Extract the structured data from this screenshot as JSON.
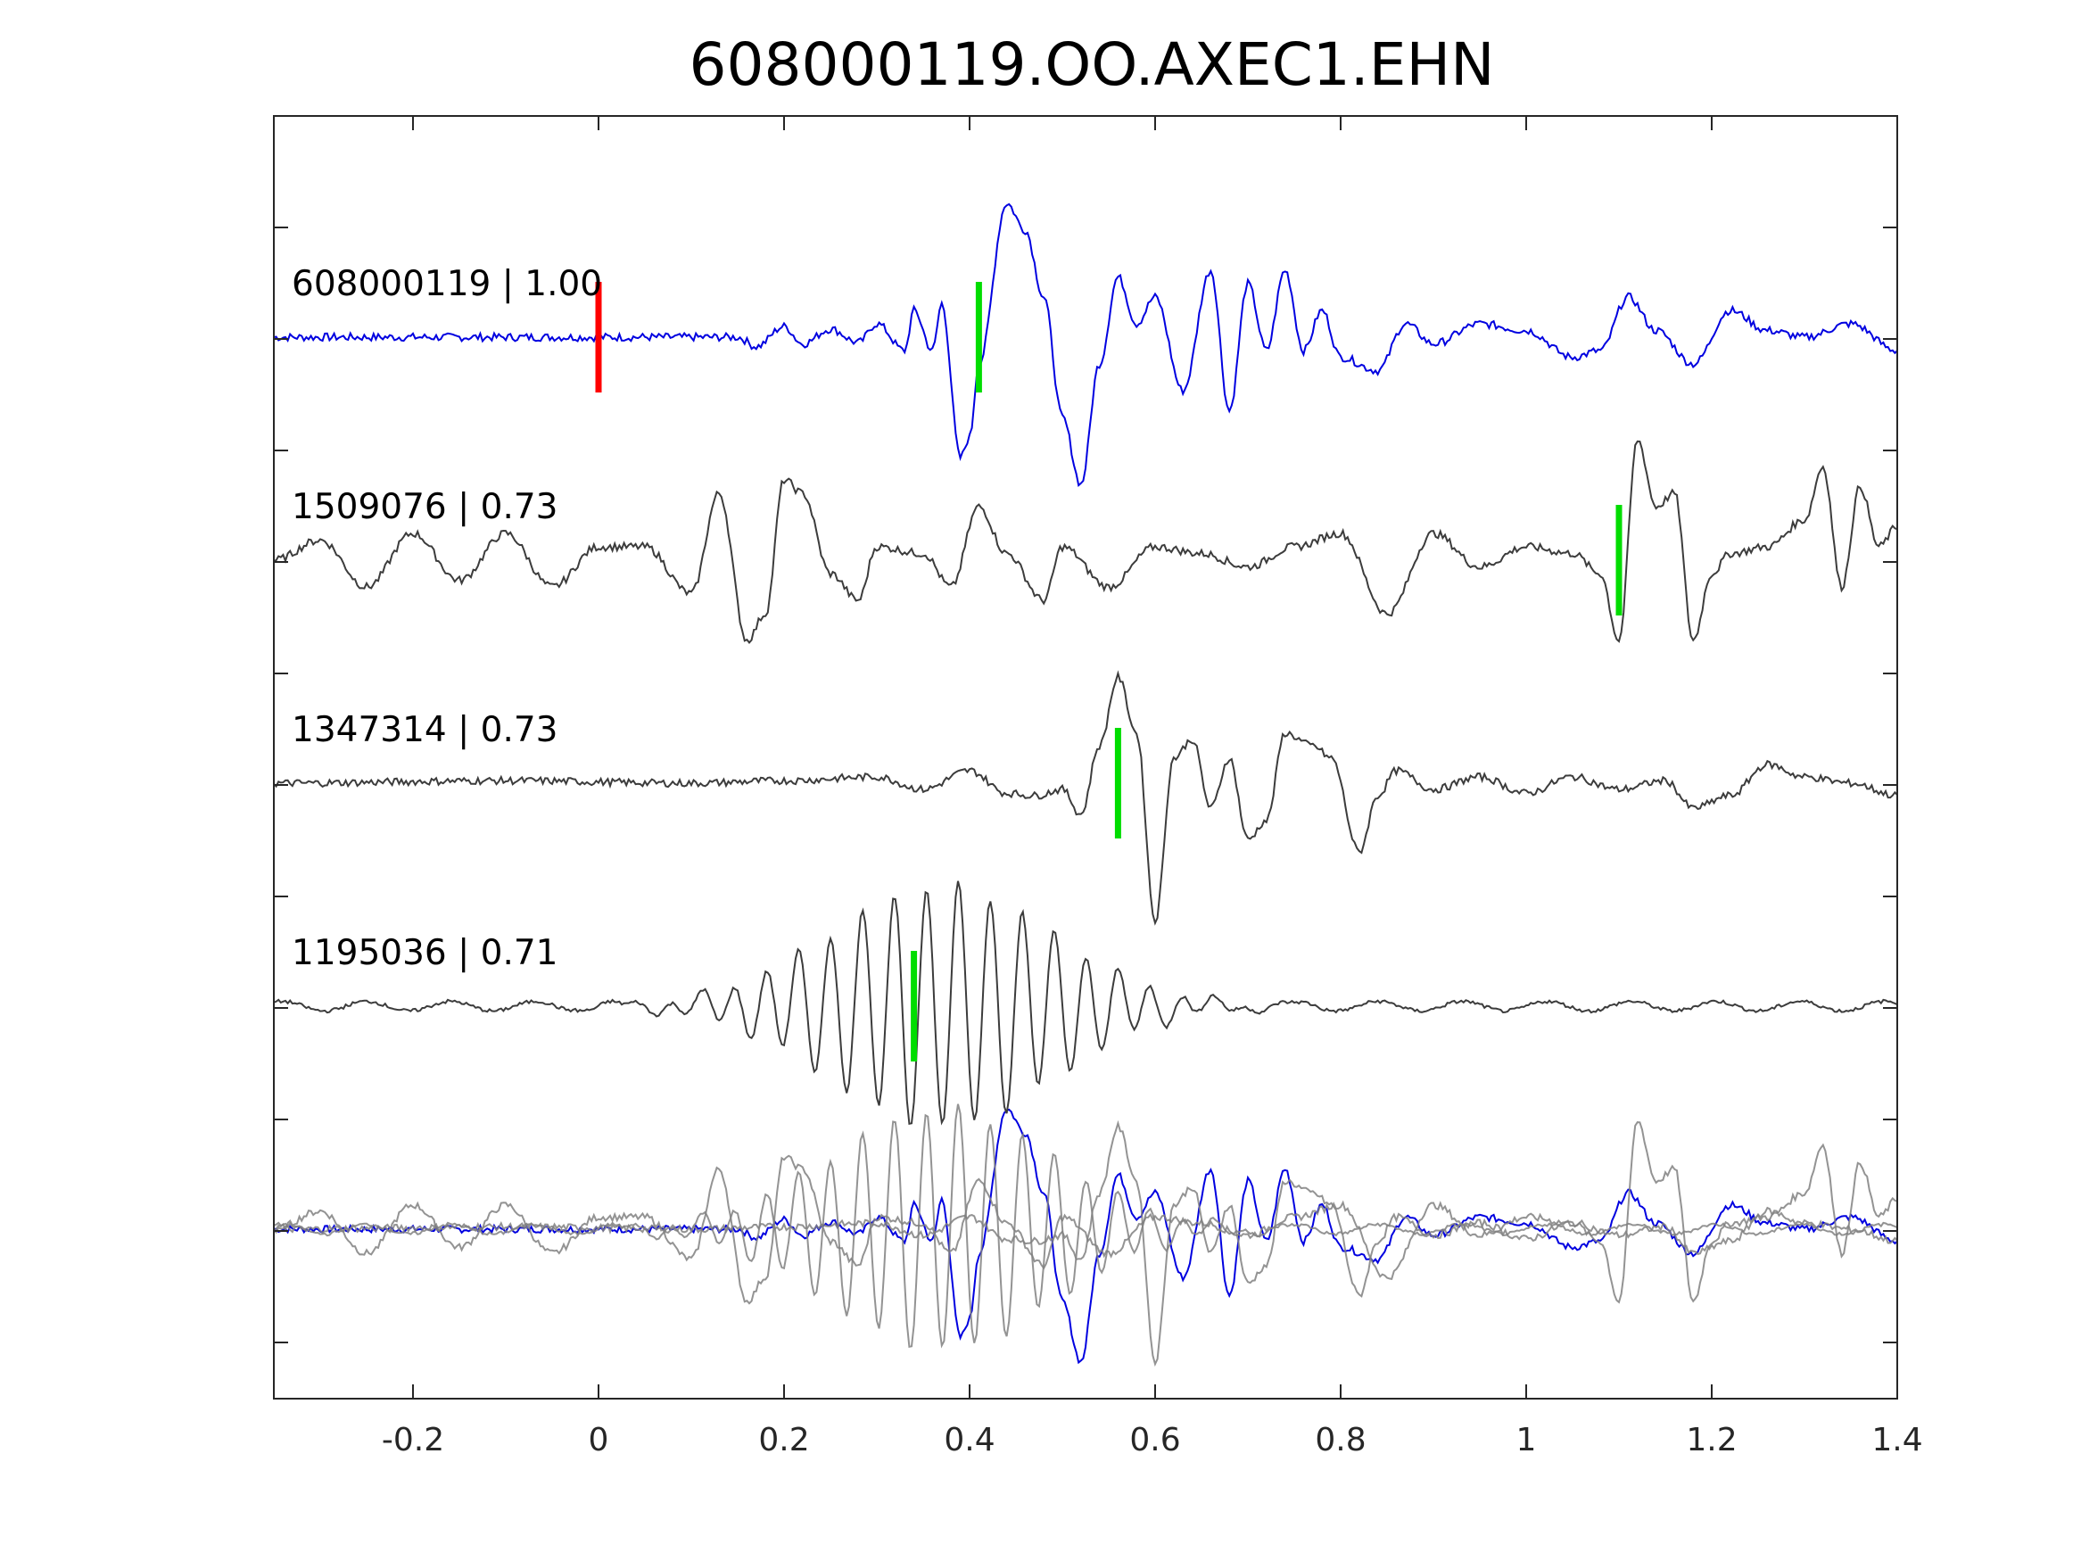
{
  "chart_data": {
    "type": "line",
    "title": "608000119.OO.AXEC1.EHN",
    "xlabel": "",
    "ylabel": "",
    "xlim": [
      -0.35,
      1.4
    ],
    "x_ticks": [
      -0.2,
      0,
      0.2,
      0.4,
      0.6,
      0.8,
      1,
      1.2,
      1.4
    ],
    "x_tick_labels": [
      "-0.2",
      "0",
      "0.2",
      "0.4",
      "0.6",
      "0.8",
      "1",
      "1.2",
      "1.4"
    ],
    "grid": false,
    "traces": [
      {
        "label": "608000119 | 1.00",
        "color": "#0000e0",
        "reference_pick_time": 0.0,
        "reference_pick_color": "#ff0000",
        "pick_time": 0.41,
        "pick_color": "#00dd00",
        "waveform": [
          [
            -0.35,
            0
          ],
          [
            -0.1,
            0
          ],
          [
            0.0,
            0
          ],
          [
            0.15,
            0
          ],
          [
            0.17,
            -0.07
          ],
          [
            0.2,
            0.08
          ],
          [
            0.22,
            -0.05
          ],
          [
            0.25,
            0.06
          ],
          [
            0.28,
            -0.04
          ],
          [
            0.3,
            0.1
          ],
          [
            0.33,
            -0.1
          ],
          [
            0.34,
            0.2
          ],
          [
            0.36,
            -0.1
          ],
          [
            0.37,
            0.25
          ],
          [
            0.39,
            -0.9
          ],
          [
            0.4,
            -0.75
          ],
          [
            0.41,
            -0.2
          ],
          [
            0.44,
            1.0
          ],
          [
            0.46,
            0.8
          ],
          [
            0.48,
            0.3
          ],
          [
            0.5,
            -0.6
          ],
          [
            0.52,
            -1.1
          ],
          [
            0.54,
            -0.2
          ],
          [
            0.56,
            0.45
          ],
          [
            0.58,
            0.1
          ],
          [
            0.6,
            0.3
          ],
          [
            0.63,
            -0.4
          ],
          [
            0.66,
            0.5
          ],
          [
            0.68,
            -0.55
          ],
          [
            0.7,
            0.4
          ],
          [
            0.72,
            -0.1
          ],
          [
            0.74,
            0.5
          ],
          [
            0.76,
            -0.1
          ],
          [
            0.78,
            0.2
          ],
          [
            0.8,
            -0.15
          ],
          [
            0.84,
            -0.25
          ],
          [
            0.87,
            0.1
          ],
          [
            0.9,
            -0.05
          ],
          [
            0.95,
            0.1
          ],
          [
            1.0,
            0.05
          ],
          [
            1.05,
            -0.15
          ],
          [
            1.08,
            -0.1
          ],
          [
            1.11,
            0.3
          ],
          [
            1.14,
            0.05
          ],
          [
            1.18,
            -0.2
          ],
          [
            1.22,
            0.2
          ],
          [
            1.26,
            0.05
          ],
          [
            1.3,
            0
          ],
          [
            1.35,
            0.1
          ],
          [
            1.4,
            -0.1
          ]
        ]
      },
      {
        "label": "1509076 | 0.73",
        "color": "#3c3c3c",
        "pick_time": 1.1,
        "pick_color": "#00dd00",
        "waveform": [
          [
            -0.35,
            0
          ],
          [
            -0.3,
            0.15
          ],
          [
            -0.25,
            -0.2
          ],
          [
            -0.2,
            0.2
          ],
          [
            -0.15,
            -0.15
          ],
          [
            -0.1,
            0.2
          ],
          [
            -0.05,
            -0.2
          ],
          [
            0.0,
            0.1
          ],
          [
            0.05,
            0.1
          ],
          [
            0.1,
            -0.25
          ],
          [
            0.13,
            0.5
          ],
          [
            0.16,
            -0.6
          ],
          [
            0.18,
            -0.4
          ],
          [
            0.2,
            0.6
          ],
          [
            0.22,
            0.5
          ],
          [
            0.25,
            -0.1
          ],
          [
            0.28,
            -0.3
          ],
          [
            0.3,
            0.1
          ],
          [
            0.35,
            0.05
          ],
          [
            0.38,
            -0.2
          ],
          [
            0.41,
            0.4
          ],
          [
            0.44,
            0.05
          ],
          [
            0.48,
            -0.3
          ],
          [
            0.5,
            0.1
          ],
          [
            0.55,
            -0.2
          ],
          [
            0.6,
            0.1
          ],
          [
            0.65,
            0.05
          ],
          [
            0.7,
            -0.05
          ],
          [
            0.75,
            0.1
          ],
          [
            0.8,
            0.2
          ],
          [
            0.85,
            -0.4
          ],
          [
            0.9,
            0.2
          ],
          [
            0.95,
            -0.05
          ],
          [
            1.0,
            0.1
          ],
          [
            1.05,
            0.05
          ],
          [
            1.08,
            -0.1
          ],
          [
            1.1,
            -0.6
          ],
          [
            1.12,
            0.9
          ],
          [
            1.14,
            0.4
          ],
          [
            1.16,
            0.5
          ],
          [
            1.18,
            -0.6
          ],
          [
            1.2,
            -0.1
          ],
          [
            1.22,
            0.05
          ],
          [
            1.26,
            0.1
          ],
          [
            1.3,
            0.3
          ],
          [
            1.32,
            0.7
          ],
          [
            1.34,
            -0.2
          ],
          [
            1.36,
            0.55
          ],
          [
            1.38,
            0.1
          ],
          [
            1.4,
            0.25
          ]
        ]
      },
      {
        "label": "1347314 | 0.73",
        "color": "#3c3c3c",
        "pick_time": 0.56,
        "pick_color": "#00dd00",
        "waveform": [
          [
            -0.35,
            0
          ],
          [
            -0.1,
            0.02
          ],
          [
            0.1,
            0
          ],
          [
            0.2,
            0.02
          ],
          [
            0.3,
            0.05
          ],
          [
            0.35,
            -0.05
          ],
          [
            0.4,
            0.1
          ],
          [
            0.44,
            -0.08
          ],
          [
            0.47,
            -0.1
          ],
          [
            0.5,
            -0.05
          ],
          [
            0.52,
            -0.25
          ],
          [
            0.54,
            0.3
          ],
          [
            0.56,
            0.85
          ],
          [
            0.58,
            0.4
          ],
          [
            0.6,
            -1.1
          ],
          [
            0.62,
            0.2
          ],
          [
            0.64,
            0.35
          ],
          [
            0.66,
            -0.2
          ],
          [
            0.68,
            0.2
          ],
          [
            0.7,
            -0.45
          ],
          [
            0.72,
            -0.3
          ],
          [
            0.74,
            0.4
          ],
          [
            0.77,
            0.3
          ],
          [
            0.79,
            0.2
          ],
          [
            0.82,
            -0.55
          ],
          [
            0.84,
            -0.1
          ],
          [
            0.86,
            0.1
          ],
          [
            0.9,
            -0.05
          ],
          [
            0.95,
            0.05
          ],
          [
            1.0,
            -0.08
          ],
          [
            1.05,
            0.05
          ],
          [
            1.1,
            -0.05
          ],
          [
            1.15,
            0.02
          ],
          [
            1.18,
            -0.2
          ],
          [
            1.22,
            -0.1
          ],
          [
            1.26,
            0.15
          ],
          [
            1.3,
            0.05
          ],
          [
            1.35,
            0
          ],
          [
            1.4,
            -0.1
          ]
        ]
      },
      {
        "label": "1195036 | 0.71",
        "color": "#3c3c3c",
        "pick_time": 0.34,
        "pick_color": "#00dd00",
        "waveform": "oscillation",
        "envelope_peak_time": 0.37,
        "envelope_peak_amplitude": 1.0
      }
    ],
    "overlay": {
      "description_color_primary": "#0000e0",
      "description_color_others": "#808080"
    }
  }
}
